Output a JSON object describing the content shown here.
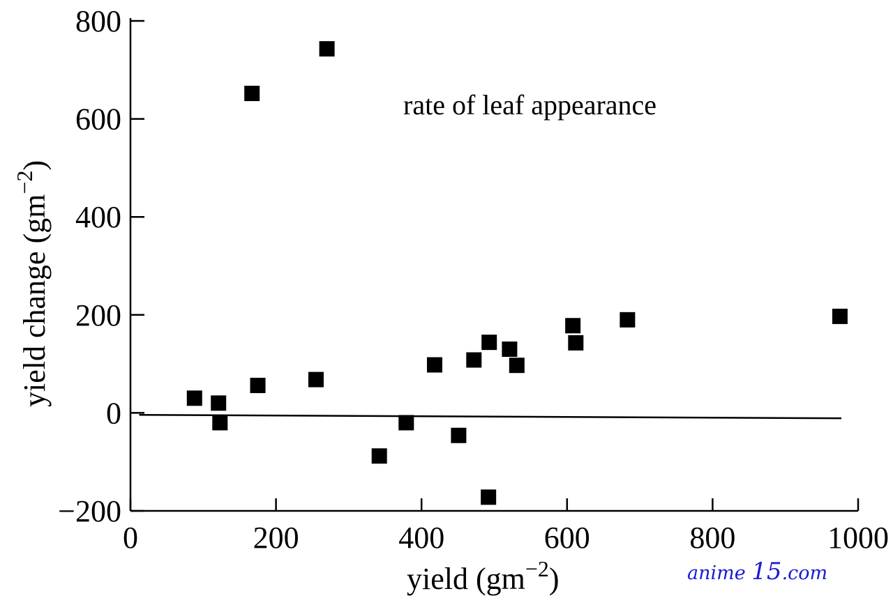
{
  "chart_data": {
    "type": "scatter",
    "title": "",
    "annotation": "rate of leaf appearance",
    "xlabel": "yield (gm",
    "xlabel_sup": "−2",
    "xlabel_close": ")",
    "ylabel": "yield change (gm",
    "ylabel_sup": "−2",
    "ylabel_close": ")",
    "xlim": [
      0,
      1000
    ],
    "ylim": [
      -200,
      800
    ],
    "xticks": [
      0,
      200,
      400,
      600,
      800,
      1000
    ],
    "xtick_labels": [
      "0",
      "200",
      "400",
      "600",
      "800",
      "1000"
    ],
    "yticks": [
      -200,
      0,
      200,
      400,
      600,
      800
    ],
    "ytick_labels": [
      "−200",
      "0",
      "200",
      "400",
      "600",
      "800"
    ],
    "grid": false,
    "points": [
      {
        "x": 88,
        "y": 30
      },
      {
        "x": 121,
        "y": 20
      },
      {
        "x": 123,
        "y": -20
      },
      {
        "x": 167,
        "y": 652
      },
      {
        "x": 175,
        "y": 56
      },
      {
        "x": 255,
        "y": 68
      },
      {
        "x": 270,
        "y": 743
      },
      {
        "x": 342,
        "y": -88
      },
      {
        "x": 379,
        "y": -20
      },
      {
        "x": 418,
        "y": 98
      },
      {
        "x": 451,
        "y": -46
      },
      {
        "x": 472,
        "y": 108
      },
      {
        "x": 492,
        "y": -172
      },
      {
        "x": 493,
        "y": 144
      },
      {
        "x": 521,
        "y": 130
      },
      {
        "x": 531,
        "y": 97
      },
      {
        "x": 608,
        "y": 178
      },
      {
        "x": 612,
        "y": 143
      },
      {
        "x": 683,
        "y": 190
      },
      {
        "x": 975,
        "y": 197
      }
    ],
    "trend_line": {
      "x": [
        12,
        977
      ],
      "y": [
        -4,
        -11
      ]
    }
  },
  "watermark": {
    "text_a": "anime ",
    "text_b": "15",
    "text_c": ".com"
  }
}
